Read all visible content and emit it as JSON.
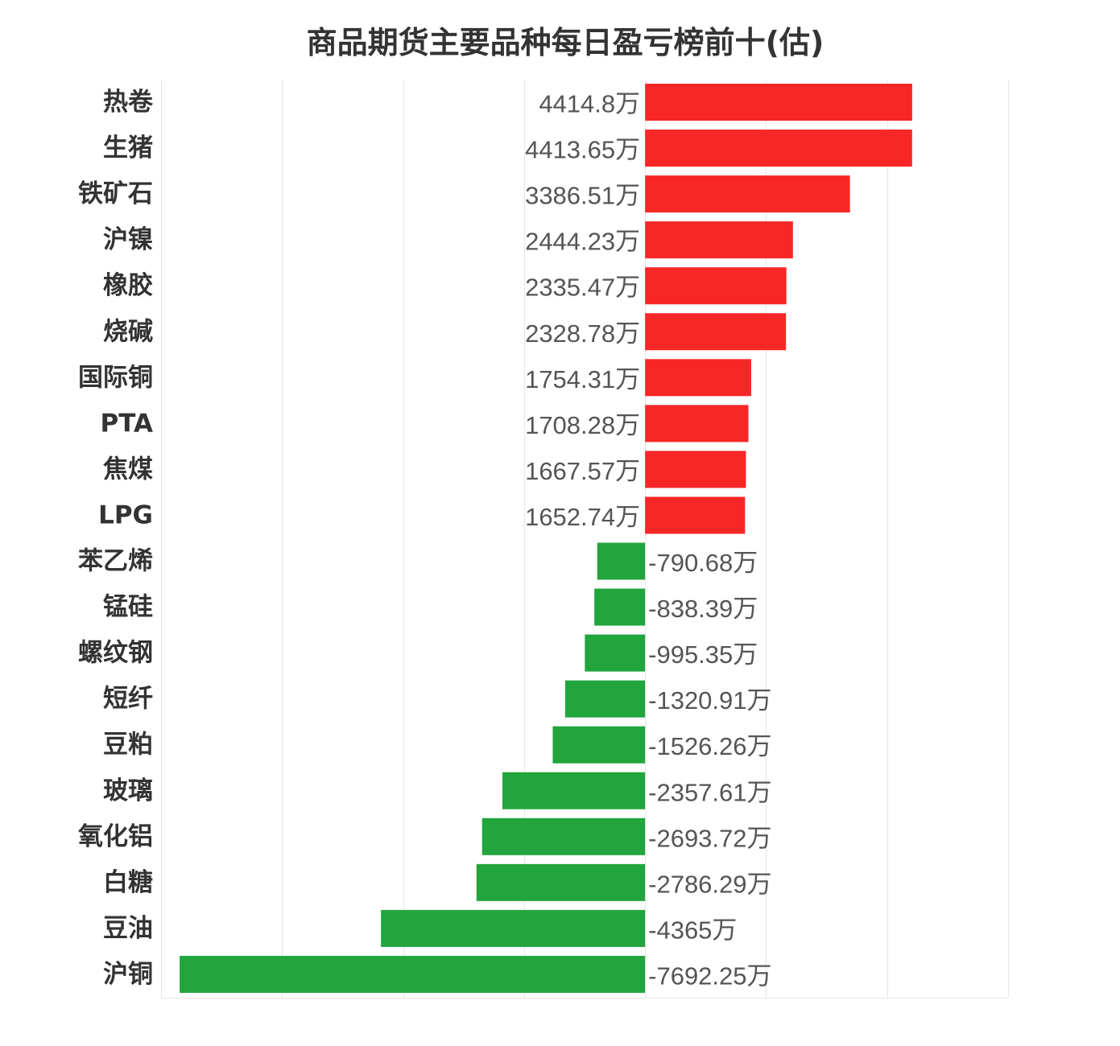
{
  "chart_data": {
    "type": "bar",
    "orientation": "horizontal",
    "title": "商品期货主要品种每日盈亏榜前十(估)",
    "unit_suffix": "万",
    "categories": [
      "热卷",
      "生猪",
      "铁矿石",
      "沪镍",
      "橡胶",
      "烧碱",
      "国际铜",
      "PTA",
      "焦煤",
      "LPG",
      "苯乙烯",
      "锰硅",
      "螺纹钢",
      "短纤",
      "豆粕",
      "玻璃",
      "氧化铝",
      "白糖",
      "豆油",
      "沪铜"
    ],
    "values": [
      4414.8,
      4413.65,
      3386.51,
      2444.23,
      2335.47,
      2328.78,
      1754.31,
      1708.28,
      1667.57,
      1652.74,
      -790.68,
      -838.39,
      -995.35,
      -1320.91,
      -1526.26,
      -2357.61,
      -2693.72,
      -2786.29,
      -4365,
      -7692.25
    ],
    "value_labels": [
      "4414.8万",
      "4413.65万",
      "3386.51万",
      "2444.23万",
      "2335.47万",
      "2328.78万",
      "1754.31万",
      "1708.28万",
      "1667.57万",
      "1652.74万",
      "-790.68万",
      "-838.39万",
      "-995.35万",
      "-1320.91万",
      "-1526.26万",
      "-2357.61万",
      "-2693.72万",
      "-2786.29万",
      "-4365万",
      "-7692.25万"
    ],
    "xlim": [
      -8000,
      6000
    ],
    "grid_step": 2000,
    "grid": true,
    "colors": {
      "positive": "#f72727",
      "negative": "#21a53c",
      "grid": "#e6e6e6"
    }
  }
}
